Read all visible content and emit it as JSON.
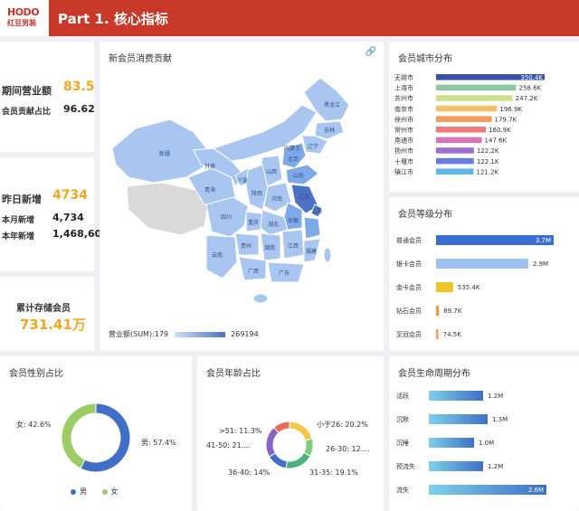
{
  "header": {
    "logo_top": "HODO",
    "logo_bottom": "红豆男装",
    "title": "Part 1. 核心指标"
  },
  "kpis": {
    "sales_label": "期间营业额",
    "sales_value": "83.5",
    "ratio_label": "会员贡献占比",
    "ratio_value": "96.62",
    "yesterday_label": "昨日新增",
    "yesterday_value": "4734",
    "month_label": "本月新增",
    "month_value": "4,734",
    "year_label": "本年新增",
    "year_value": "1,468,60",
    "total_label": "累计存储会员",
    "total_value": "731.41万"
  },
  "map_card": {
    "title": "新会员消费贡献",
    "legend_label": "营业额(SUM):179",
    "legend_max": "269194",
    "provinces": [
      "新疆",
      "西藏",
      "青海",
      "甘肃",
      "内蒙古",
      "黑龙江",
      "吉林",
      "辽宁",
      "北京",
      "山西",
      "宁夏",
      "陕西",
      "河南",
      "山东",
      "安徽",
      "江苏",
      "上海",
      "四川",
      "重庆",
      "湖北",
      "湖南",
      "江西",
      "贵州",
      "云南",
      "广西",
      "广东",
      "福建"
    ],
    "colors": {
      "high": "#4b72c4",
      "mid": "#7ea9e8",
      "base": "#a9c6f0",
      "none": "#d9d9d9"
    }
  },
  "city_card": {
    "title": "会员城市分布",
    "rows": [
      {
        "name": "无锡市",
        "value": 350.4,
        "label": "350.4K",
        "color": "#3a4fa8"
      },
      {
        "name": "上海市",
        "value": 258.6,
        "label": "258.6K",
        "color": "#8cc7a4"
      },
      {
        "name": "苏州市",
        "value": 247.2,
        "label": "247.2K",
        "color": "#cfe08a"
      },
      {
        "name": "南京市",
        "value": 196.9,
        "label": "196.9K",
        "color": "#f5c06a"
      },
      {
        "name": "徐州市",
        "value": 179.7,
        "label": "179.7K",
        "color": "#f29a58"
      },
      {
        "name": "常州市",
        "value": 160.9,
        "label": "160.9K",
        "color": "#ee7a7a"
      },
      {
        "name": "南通市",
        "value": 147.6,
        "label": "147.6K",
        "color": "#d775b8"
      },
      {
        "name": "扬州市",
        "value": 122.2,
        "label": "122.2K",
        "color": "#9e6fcf"
      },
      {
        "name": "十堰市",
        "value": 122.1,
        "label": "122.1K",
        "color": "#6a7be0"
      },
      {
        "name": "镇江市",
        "value": 121.2,
        "label": "121.2K",
        "color": "#5ab8e6"
      }
    ]
  },
  "level_card": {
    "title": "会员等级分布",
    "rows": [
      {
        "name": "普通会员",
        "value": 3700,
        "label": "3.7M",
        "color": "#3a6fd1"
      },
      {
        "name": "银卡会员",
        "value": 2900,
        "label": "2.9M",
        "color": "#9ec1ef"
      },
      {
        "name": "金卡会员",
        "value": 535.4,
        "label": "535.4K",
        "color": "#f2c526"
      },
      {
        "name": "钻石会员",
        "value": 89.7,
        "label": "89.7K",
        "color": "#f09a3a"
      },
      {
        "name": "至冠会员",
        "value": 74.5,
        "label": "74.5K",
        "color": "#f5a15c"
      }
    ]
  },
  "gender_card": {
    "title": "会员性别占比",
    "female_label": "女: 42.6%",
    "male_label": "男: 57.4%",
    "legend_male": "男",
    "legend_female": "女",
    "slices": [
      {
        "name": "男",
        "value": 57.4,
        "color": "#3f6fc6"
      },
      {
        "name": "女",
        "value": 42.6,
        "color": "#9ccc65"
      }
    ]
  },
  "age_card": {
    "title": "会员年龄占比",
    "labels": {
      "a51": ">51: 11.3%",
      "a41": "41-50: 21....",
      "a36": "36-40: 14%",
      "a26": "小于26: 20.2%",
      "a2630": "26-30: 12....",
      "a3135": "31-35: 19.1%"
    },
    "slices": [
      {
        "name": "小于26",
        "value": 20.2,
        "color": "#f2c94c"
      },
      {
        "name": "26-30",
        "value": 12.0,
        "color": "#7fcf7a"
      },
      {
        "name": "31-35",
        "value": 19.1,
        "color": "#4caf80"
      },
      {
        "name": "36-40",
        "value": 14.0,
        "color": "#3f6fc6"
      },
      {
        "name": "41-50",
        "value": 21.4,
        "color": "#8a63c9"
      },
      {
        "name": ">51",
        "value": 11.3,
        "color": "#e86a5a"
      }
    ]
  },
  "lifecycle_card": {
    "title": "会员生命周期分布",
    "rows": [
      {
        "name": "活跃",
        "value": 1.2,
        "label": "1.2M"
      },
      {
        "name": "沉默",
        "value": 1.3,
        "label": "1.3M"
      },
      {
        "name": "沉睡",
        "value": 1.0,
        "label": "1.0M"
      },
      {
        "name": "预流失",
        "value": 1.2,
        "label": "1.2M"
      },
      {
        "name": "流失",
        "value": 2.6,
        "label": "2.6M"
      }
    ]
  }
}
